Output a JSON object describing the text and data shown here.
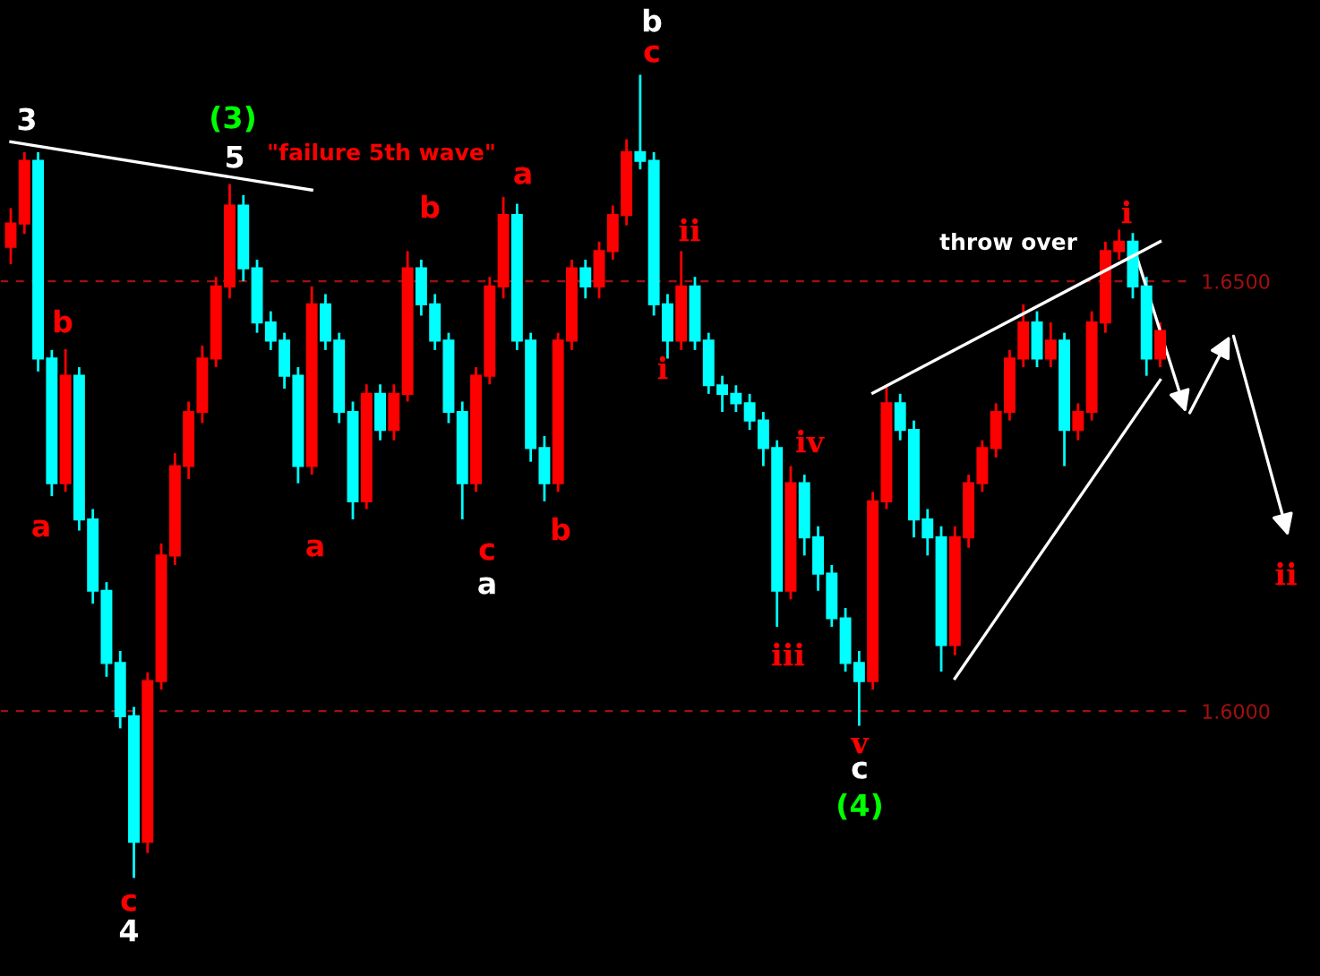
{
  "chart_data": {
    "type": "candlestick",
    "categories": [
      null,
      null,
      null,
      null,
      null,
      null,
      null,
      null,
      null,
      null,
      null,
      null,
      null,
      null,
      null,
      null,
      null,
      null,
      null,
      null,
      null,
      null,
      null,
      null,
      null,
      null,
      null,
      null,
      null,
      null,
      null,
      null,
      null,
      null,
      null,
      null,
      null,
      null,
      null,
      null,
      null,
      null,
      null,
      null,
      null,
      null,
      null,
      null,
      null,
      null,
      null,
      null,
      null,
      null,
      null,
      null,
      null,
      null,
      null,
      null,
      null,
      null,
      null,
      null,
      null,
      null,
      null,
      null,
      null,
      null,
      null,
      null,
      null,
      null,
      null,
      null,
      null,
      null,
      null,
      null,
      null,
      null,
      null,
      null,
      null
    ],
    "ohlc": [
      [
        1.654,
        1.6585,
        1.652,
        1.6567
      ],
      [
        1.6567,
        1.665,
        1.6555,
        1.664
      ],
      [
        1.664,
        1.665,
        1.6395,
        1.641
      ],
      [
        1.641,
        1.642,
        1.625,
        1.6265
      ],
      [
        1.6265,
        1.6421,
        1.6255,
        1.639
      ],
      [
        1.639,
        1.64,
        1.621,
        1.6223
      ],
      [
        1.6223,
        1.6235,
        1.6125,
        1.614
      ],
      [
        1.614,
        1.615,
        1.604,
        1.6056
      ],
      [
        1.6056,
        1.607,
        1.598,
        1.5994
      ],
      [
        1.5994,
        1.6005,
        1.5806,
        1.5848
      ],
      [
        1.5848,
        1.6045,
        1.5835,
        1.6035
      ],
      [
        1.6035,
        1.6195,
        1.6025,
        1.6181
      ],
      [
        1.6181,
        1.63,
        1.617,
        1.6285
      ],
      [
        1.6285,
        1.636,
        1.627,
        1.6348
      ],
      [
        1.6348,
        1.6425,
        1.6335,
        1.641
      ],
      [
        1.641,
        1.6505,
        1.64,
        1.6494
      ],
      [
        1.6494,
        1.6613,
        1.648,
        1.6588
      ],
      [
        1.6588,
        1.66,
        1.65,
        1.6515
      ],
      [
        1.6515,
        1.6525,
        1.644,
        1.6452
      ],
      [
        1.6452,
        1.6465,
        1.642,
        1.6431
      ],
      [
        1.6431,
        1.644,
        1.6375,
        1.639
      ],
      [
        1.639,
        1.64,
        1.6265,
        1.6285
      ],
      [
        1.6285,
        1.6494,
        1.6275,
        1.6473
      ],
      [
        1.6473,
        1.6485,
        1.642,
        1.6431
      ],
      [
        1.6431,
        1.644,
        1.6335,
        1.6348
      ],
      [
        1.6348,
        1.636,
        1.6223,
        1.6244
      ],
      [
        1.6244,
        1.638,
        1.6235,
        1.6369
      ],
      [
        1.6369,
        1.638,
        1.6315,
        1.6327
      ],
      [
        1.6327,
        1.638,
        1.6315,
        1.6369
      ],
      [
        1.6369,
        1.6535,
        1.636,
        1.6515
      ],
      [
        1.6515,
        1.6525,
        1.646,
        1.6473
      ],
      [
        1.6473,
        1.6485,
        1.642,
        1.6431
      ],
      [
        1.6431,
        1.644,
        1.6335,
        1.6348
      ],
      [
        1.6348,
        1.636,
        1.6223,
        1.6265
      ],
      [
        1.6265,
        1.64,
        1.6255,
        1.639
      ],
      [
        1.639,
        1.6505,
        1.638,
        1.6494
      ],
      [
        1.6494,
        1.6598,
        1.648,
        1.6577
      ],
      [
        1.6577,
        1.659,
        1.642,
        1.6431
      ],
      [
        1.6431,
        1.644,
        1.629,
        1.6306
      ],
      [
        1.6306,
        1.632,
        1.6244,
        1.6265
      ],
      [
        1.6265,
        1.644,
        1.6255,
        1.6431
      ],
      [
        1.6431,
        1.6525,
        1.642,
        1.6515
      ],
      [
        1.6515,
        1.6525,
        1.648,
        1.6494
      ],
      [
        1.6494,
        1.6546,
        1.648,
        1.6535
      ],
      [
        1.6535,
        1.6588,
        1.6525,
        1.6577
      ],
      [
        1.6577,
        1.6665,
        1.6565,
        1.665
      ],
      [
        1.665,
        1.674,
        1.663,
        1.664
      ],
      [
        1.664,
        1.665,
        1.646,
        1.6473
      ],
      [
        1.6473,
        1.6485,
        1.641,
        1.6431
      ],
      [
        1.6431,
        1.6535,
        1.642,
        1.6494
      ],
      [
        1.6494,
        1.6505,
        1.642,
        1.6431
      ],
      [
        1.6431,
        1.644,
        1.6369,
        1.6379
      ],
      [
        1.6379,
        1.639,
        1.6348,
        1.6369
      ],
      [
        1.6369,
        1.6379,
        1.6348,
        1.6358
      ],
      [
        1.6358,
        1.6369,
        1.6327,
        1.6338
      ],
      [
        1.6338,
        1.6348,
        1.6285,
        1.6306
      ],
      [
        1.6306,
        1.6315,
        1.6098,
        1.614
      ],
      [
        1.614,
        1.6285,
        1.613,
        1.6265
      ],
      [
        1.6265,
        1.6275,
        1.6181,
        1.6202
      ],
      [
        1.6202,
        1.6215,
        1.614,
        1.616
      ],
      [
        1.616,
        1.617,
        1.6098,
        1.6108
      ],
      [
        1.6108,
        1.612,
        1.6046,
        1.6056
      ],
      [
        1.6056,
        1.607,
        1.5983,
        1.6035
      ],
      [
        1.6035,
        1.6255,
        1.6025,
        1.6244
      ],
      [
        1.6244,
        1.6379,
        1.6235,
        1.6358
      ],
      [
        1.6358,
        1.6369,
        1.6315,
        1.6327
      ],
      [
        1.6327,
        1.6338,
        1.6202,
        1.6223
      ],
      [
        1.6223,
        1.6235,
        1.6181,
        1.6202
      ],
      [
        1.6202,
        1.6215,
        1.6046,
        1.6077
      ],
      [
        1.6077,
        1.6215,
        1.6065,
        1.6202
      ],
      [
        1.6202,
        1.6275,
        1.619,
        1.6265
      ],
      [
        1.6265,
        1.6315,
        1.6255,
        1.6306
      ],
      [
        1.6306,
        1.6358,
        1.6295,
        1.6348
      ],
      [
        1.6348,
        1.642,
        1.6338,
        1.641
      ],
      [
        1.641,
        1.6473,
        1.64,
        1.6452
      ],
      [
        1.6452,
        1.6465,
        1.64,
        1.641
      ],
      [
        1.641,
        1.6452,
        1.64,
        1.6431
      ],
      [
        1.6431,
        1.644,
        1.6285,
        1.6327
      ],
      [
        1.6327,
        1.6358,
        1.6315,
        1.6348
      ],
      [
        1.6348,
        1.6465,
        1.6338,
        1.6452
      ],
      [
        1.6452,
        1.6546,
        1.644,
        1.6535
      ],
      [
        1.6535,
        1.656,
        1.6525,
        1.6546
      ],
      [
        1.6546,
        1.6556,
        1.648,
        1.6494
      ],
      [
        1.6494,
        1.6505,
        1.639,
        1.641
      ],
      [
        1.641,
        1.6452,
        1.64,
        1.6442
      ]
    ],
    "colors": [
      "#ff0000",
      "#ff0000",
      "#00ffff",
      "#00ffff",
      "#ff0000",
      "#00ffff",
      "#00ffff",
      "#00ffff",
      "#00ffff",
      "#00ffff",
      "#ff0000",
      "#ff0000",
      "#ff0000",
      "#ff0000",
      "#ff0000",
      "#ff0000",
      "#ff0000",
      "#00ffff",
      "#00ffff",
      "#00ffff",
      "#00ffff",
      "#00ffff",
      "#ff0000",
      "#00ffff",
      "#00ffff",
      "#00ffff",
      "#ff0000",
      "#00ffff",
      "#ff0000",
      "#ff0000",
      "#00ffff",
      "#00ffff",
      "#00ffff",
      "#00ffff",
      "#ff0000",
      "#ff0000",
      "#ff0000",
      "#00ffff",
      "#00ffff",
      "#00ffff",
      "#ff0000",
      "#ff0000",
      "#00ffff",
      "#ff0000",
      "#ff0000",
      "#ff0000",
      "#00ffff",
      "#00ffff",
      "#00ffff",
      "#ff0000",
      "#00ffff",
      "#00ffff",
      "#00ffff",
      "#00ffff",
      "#00ffff",
      "#00ffff",
      "#00ffff",
      "#ff0000",
      "#00ffff",
      "#00ffff",
      "#00ffff",
      "#00ffff",
      "#00ffff",
      "#ff0000",
      "#ff0000",
      "#00ffff",
      "#00ffff",
      "#00ffff",
      "#00ffff",
      "#ff0000",
      "#ff0000",
      "#ff0000",
      "#ff0000",
      "#ff0000",
      "#ff0000",
      "#00ffff",
      "#ff0000",
      "#00ffff",
      "#ff0000",
      "#ff0000",
      "#ff0000",
      "#ff0000",
      "#00ffff",
      "#00ffff",
      "#ff0000"
    ],
    "series": [
      {
        "type": "line",
        "color": "#ffffff",
        "values": [
          1.6662,
          null,
          null,
          null,
          null,
          null,
          null,
          null,
          null,
          null,
          null,
          null,
          null,
          null,
          null,
          null,
          null,
          null,
          null,
          null,
          null,
          null,
          1.6606,
          null,
          null,
          null,
          null,
          null,
          null,
          null,
          null,
          null,
          null,
          null,
          null,
          null,
          null,
          null,
          null,
          null,
          null,
          null,
          null,
          null,
          null,
          null,
          null,
          null,
          null,
          null,
          null,
          null,
          null,
          null,
          null,
          null,
          null,
          null,
          null,
          null,
          null,
          null,
          null,
          null,
          null,
          null,
          null,
          null,
          null,
          null,
          null,
          null,
          null,
          null,
          null,
          null,
          null,
          null,
          null,
          null,
          null,
          null,
          null,
          null,
          null
        ]
      },
      {
        "type": "line",
        "color": "#ffffff",
        "values": [
          null,
          null,
          null,
          null,
          null,
          null,
          null,
          null,
          null,
          null,
          null,
          null,
          null,
          null,
          null,
          null,
          null,
          null,
          null,
          null,
          null,
          null,
          null,
          null,
          null,
          null,
          null,
          null,
          null,
          null,
          null,
          null,
          null,
          null,
          null,
          null,
          null,
          null,
          null,
          null,
          null,
          null,
          null,
          null,
          null,
          null,
          null,
          null,
          null,
          null,
          null,
          null,
          null,
          null,
          null,
          null,
          null,
          null,
          null,
          null,
          null,
          null,
          null,
          1.637,
          null,
          null,
          null,
          null,
          null,
          null,
          null,
          null,
          null,
          null,
          null,
          null,
          null,
          null,
          null,
          null,
          null,
          null,
          null,
          null,
          1.6546
        ]
      },
      {
        "type": "line",
        "color": "#ffffff",
        "values": [
          null,
          null,
          null,
          null,
          null,
          null,
          null,
          null,
          null,
          null,
          null,
          null,
          null,
          null,
          null,
          null,
          null,
          null,
          null,
          null,
          null,
          null,
          null,
          null,
          null,
          null,
          null,
          null,
          null,
          null,
          null,
          null,
          null,
          null,
          null,
          null,
          null,
          null,
          null,
          null,
          null,
          null,
          null,
          null,
          null,
          null,
          null,
          null,
          null,
          null,
          null,
          null,
          null,
          null,
          null,
          null,
          null,
          null,
          null,
          null,
          null,
          null,
          null,
          null,
          null,
          null,
          null,
          null,
          null,
          1.6038,
          null,
          null,
          null,
          null,
          null,
          null,
          null,
          null,
          null,
          null,
          null,
          null,
          null,
          null,
          1.6385
        ]
      }
    ],
    "ylim": [
      1.5692,
      1.6827
    ],
    "yticks": [
      {
        "value": 1.65,
        "label": "1.6500"
      },
      {
        "value": 1.6,
        "label": "1.6000"
      }
    ],
    "grid": "y",
    "annotations": [
      "3",
      "(3)",
      "5",
      "\"failure 5th wave\"",
      "b",
      "a",
      "c",
      "4",
      "a",
      "b",
      "a",
      "c",
      "a",
      "b",
      "b",
      "c",
      "ii",
      "i",
      "iv",
      "iii",
      "v",
      "c",
      "(4)",
      "throw over",
      "i",
      "ii"
    ]
  }
}
